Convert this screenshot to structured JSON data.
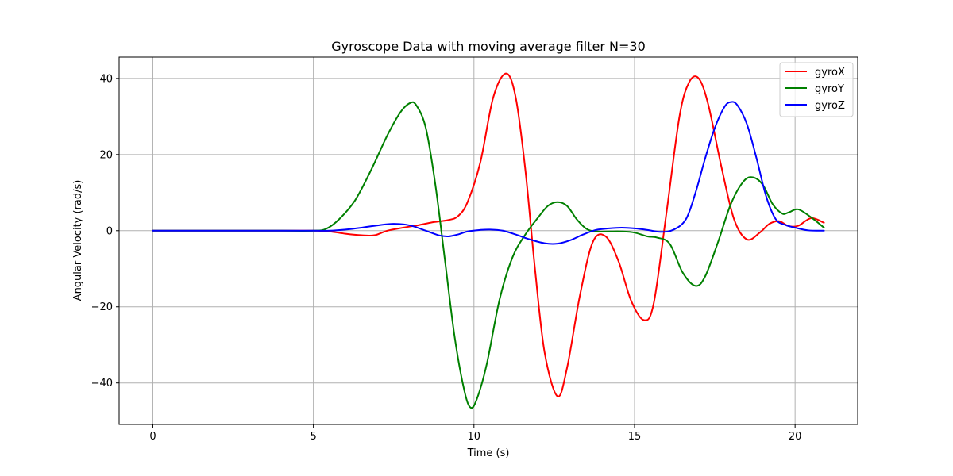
{
  "chart_data": {
    "type": "line",
    "title": "Gyroscope Data with moving average filter N=30",
    "xlabel": "Time (s)",
    "ylabel": "Angular Velocity (rad/s)",
    "xlim": [
      -1.05,
      21.95
    ],
    "ylim": [
      -50.9,
      45.6
    ],
    "xticks": [
      0,
      5,
      10,
      15,
      20
    ],
    "yticks": [
      -40,
      -20,
      0,
      20,
      40
    ],
    "xtick_labels": [
      "0",
      "5",
      "10",
      "15",
      "20"
    ],
    "ytick_labels": [
      "−40",
      "−20",
      "0",
      "20",
      "40"
    ],
    "grid": true,
    "legend_position": "top-right",
    "series": [
      {
        "name": "gyroX",
        "color": "#ff0000",
        "x": [
          0,
          1,
          2,
          3,
          4,
          5,
          5.5,
          6,
          6.5,
          6.9,
          7.3,
          7.8,
          8.3,
          8.7,
          9.2,
          9.5,
          9.8,
          10.2,
          10.6,
          11,
          11.3,
          11.6,
          11.9,
          12.2,
          12.6,
          12.9,
          13.3,
          13.7,
          14.1,
          14.5,
          14.9,
          15.3,
          15.6,
          16,
          16.4,
          16.7,
          17,
          17.3,
          17.7,
          18.1,
          18.5,
          18.9,
          19.2,
          19.5,
          19.8,
          20.1,
          20.5,
          20.9
        ],
        "values": [
          0,
          0,
          0,
          0,
          0,
          0,
          -0.2,
          -0.8,
          -1.2,
          -1.2,
          0,
          0.8,
          1.5,
          2.2,
          2.8,
          3.8,
          7.5,
          18,
          35,
          41.3,
          35,
          16,
          -10,
          -32,
          -43.5,
          -36,
          -17,
          -3,
          -1.5,
          -8,
          -18.5,
          -23.5,
          -19,
          5,
          30,
          39,
          40,
          33,
          17,
          3,
          -2.3,
          -0.5,
          1.8,
          2.5,
          1.2,
          1.3,
          3.3,
          2.1
        ]
      },
      {
        "name": "gyroY",
        "color": "#008000",
        "x": [
          0,
          1,
          2,
          3,
          4,
          5,
          5.4,
          5.8,
          6.3,
          6.8,
          7.3,
          7.7,
          8,
          8.2,
          8.5,
          8.8,
          9.1,
          9.4,
          9.7,
          9.9,
          10.1,
          10.4,
          10.8,
          11.2,
          11.6,
          12,
          12.3,
          12.6,
          12.9,
          13.2,
          13.5,
          13.8,
          14.2,
          14.6,
          15,
          15.4,
          15.7,
          16.1,
          16.5,
          16.9,
          17.2,
          17.6,
          18,
          18.4,
          18.7,
          19,
          19.3,
          19.6,
          19.8,
          20.1,
          20.5,
          20.9
        ],
        "values": [
          0,
          0,
          0,
          0,
          0,
          0,
          0.5,
          3,
          8,
          16,
          25,
          31,
          33.5,
          33,
          27,
          12,
          -8,
          -28,
          -42,
          -46.5,
          -44,
          -35,
          -18,
          -7,
          -1,
          3.5,
          6.5,
          7.5,
          6.5,
          3,
          0.5,
          -0.2,
          -0.2,
          -0.2,
          -0.5,
          -1.5,
          -1.8,
          -3.5,
          -11,
          -14.5,
          -12,
          -3,
          7,
          13,
          14,
          12,
          7,
          4.5,
          4.8,
          5.6,
          3.5,
          0.8
        ]
      },
      {
        "name": "gyroZ",
        "color": "#0000ff",
        "x": [
          0,
          1,
          2,
          3,
          4,
          5,
          5.5,
          6,
          6.5,
          7,
          7.5,
          8,
          8.5,
          8.9,
          9.2,
          9.5,
          9.8,
          10.2,
          10.5,
          10.9,
          11.3,
          11.7,
          12.2,
          12.6,
          13,
          13.4,
          13.8,
          14.2,
          14.6,
          15,
          15.4,
          15.8,
          16.2,
          16.6,
          16.9,
          17.2,
          17.5,
          17.8,
          18,
          18.2,
          18.5,
          18.8,
          19.1,
          19.4,
          19.7,
          20,
          20.4,
          20.9
        ],
        "values": [
          0,
          0,
          0,
          0,
          0,
          0,
          0,
          0.3,
          0.8,
          1.4,
          1.8,
          1.4,
          0,
          -1.2,
          -1.5,
          -1,
          -0.2,
          0.2,
          0.3,
          0,
          -1,
          -2.2,
          -3.3,
          -3.4,
          -2.5,
          -1,
          0.2,
          0.6,
          0.8,
          0.6,
          0.2,
          -0.3,
          0.2,
          3,
          10,
          19,
          27,
          32.5,
          33.8,
          33,
          28,
          19,
          9,
          3,
          1.5,
          0.8,
          0.1,
          0
        ]
      }
    ]
  }
}
